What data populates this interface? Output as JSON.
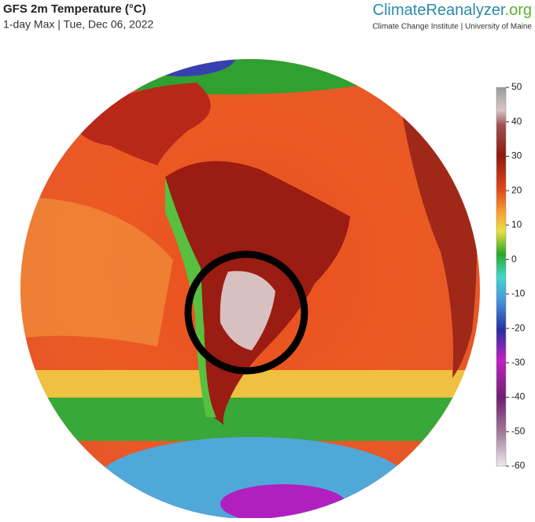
{
  "header": {
    "title": "GFS 2m Temperature (°C)",
    "subtitle": "1-day Max | Tue, Dec 06, 2022"
  },
  "brand": {
    "name": "ClimateReanalyzer",
    "suffix": ".org",
    "affiliation": "Climate Change Institute | University of Maine"
  },
  "colorbar": {
    "range": [
      -60,
      50
    ],
    "ticks": [
      50,
      40,
      30,
      20,
      10,
      0,
      -10,
      -20,
      -30,
      -40,
      -50,
      -60
    ]
  }
}
